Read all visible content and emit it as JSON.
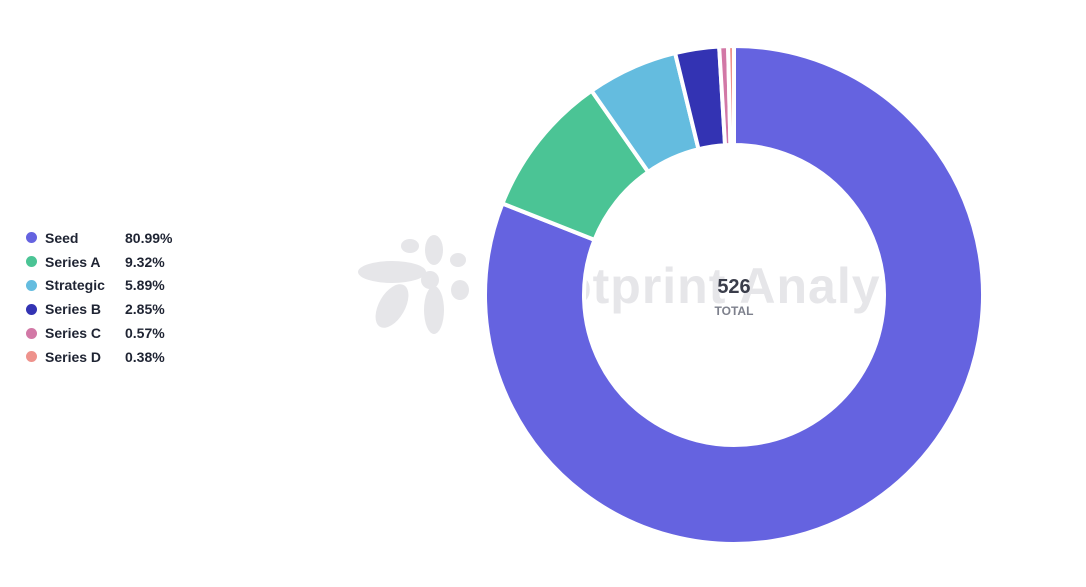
{
  "chart_data": {
    "type": "pie",
    "variant": "donut",
    "title": "",
    "total_value": "526",
    "total_label": "TOTAL",
    "legend_position": "left",
    "slices": [
      {
        "name": "Seed",
        "value": 80.99,
        "label": "80.99%",
        "color": "#6563e0"
      },
      {
        "name": "Series A",
        "value": 9.32,
        "label": "9.32%",
        "color": "#4bc495"
      },
      {
        "name": "Strategic",
        "value": 5.89,
        "label": "5.89%",
        "color": "#64bcdf"
      },
      {
        "name": "Series B",
        "value": 2.85,
        "label": "2.85%",
        "color": "#3333b3"
      },
      {
        "name": "Series C",
        "value": 0.57,
        "label": "0.57%",
        "color": "#d278a6"
      },
      {
        "name": "Series D",
        "value": 0.38,
        "label": "0.38%",
        "color": "#ee928c"
      }
    ]
  },
  "watermark": {
    "text": "Footprint Analytics",
    "color": "#e6e6e9"
  }
}
